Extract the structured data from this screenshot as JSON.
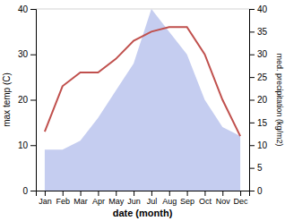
{
  "chart_data": {
    "type": "line",
    "x_label": "date (month)",
    "y_label": "max temp (C)",
    "y2_label": "med. precipitation (kg/m2)",
    "categories": [
      "Jan",
      "Feb",
      "Mar",
      "Apr",
      "May",
      "Jun",
      "Jul",
      "Aug",
      "Sep",
      "Oct",
      "Nov",
      "Dec"
    ],
    "series": [
      {
        "type": "area",
        "axis": "y2",
        "color": "#c5cdf0",
        "values": [
          9,
          9,
          11,
          16,
          22,
          28,
          40,
          35,
          30,
          20,
          14,
          12
        ]
      },
      {
        "type": "line",
        "color": "#c0504d",
        "values": [
          13,
          23,
          26,
          26,
          29,
          33,
          35,
          36,
          36,
          30,
          20,
          12
        ]
      }
    ],
    "ylim": [
      0,
      40
    ],
    "yticks": [
      0,
      10,
      20,
      30,
      40
    ],
    "y2lim": [
      0,
      40
    ],
    "y2ticks": [
      0,
      5,
      10,
      15,
      20,
      25,
      30,
      35,
      40
    ]
  }
}
